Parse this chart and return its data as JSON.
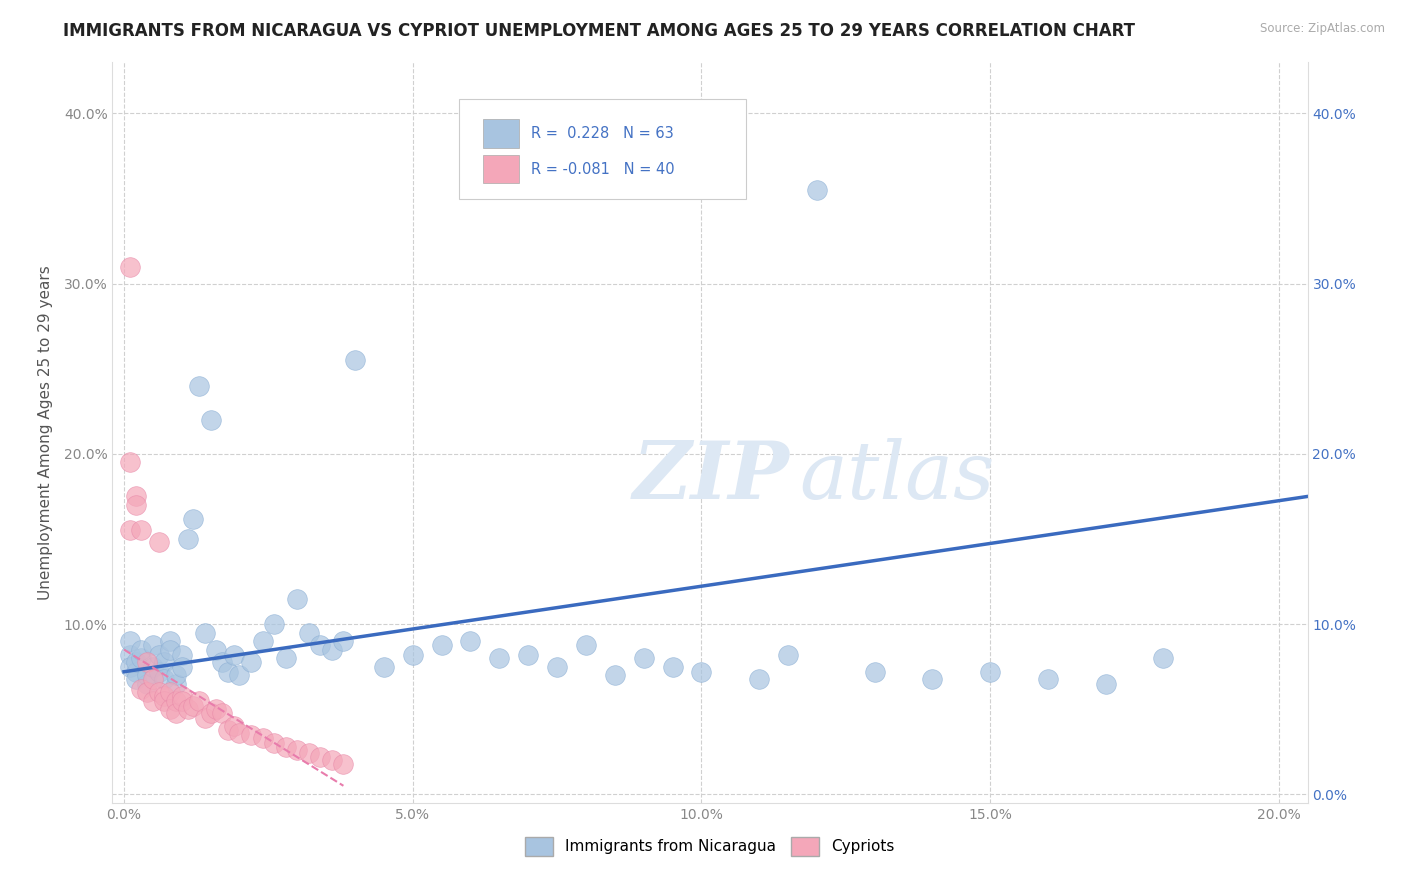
{
  "title": "IMMIGRANTS FROM NICARAGUA VS CYPRIOT UNEMPLOYMENT AMONG AGES 25 TO 29 YEARS CORRELATION CHART",
  "source": "Source: ZipAtlas.com",
  "ylabel": "Unemployment Among Ages 25 to 29 years",
  "xlim": [
    -0.002,
    0.205
  ],
  "ylim": [
    -0.005,
    0.43
  ],
  "xticks": [
    0.0,
    0.05,
    0.1,
    0.15,
    0.2
  ],
  "xtick_labels": [
    "0.0%",
    "5.0%",
    "10.0%",
    "15.0%",
    "20.0%"
  ],
  "yticks": [
    0.0,
    0.1,
    0.2,
    0.3,
    0.4
  ],
  "ytick_labels": [
    "",
    "10.0%",
    "20.0%",
    "30.0%",
    "40.0%"
  ],
  "ytick_labels_right": [
    "0.0%",
    "10.0%",
    "20.0%",
    "30.0%",
    "40.0%"
  ],
  "blue_color": "#a8c4e0",
  "pink_color": "#f4a7b9",
  "trend_blue": "#3a6abf",
  "trend_pink": "#e87cac",
  "blue_scatter_x": [
    0.001,
    0.001,
    0.001,
    0.002,
    0.002,
    0.002,
    0.003,
    0.003,
    0.004,
    0.004,
    0.005,
    0.005,
    0.006,
    0.006,
    0.007,
    0.007,
    0.008,
    0.008,
    0.009,
    0.009,
    0.01,
    0.01,
    0.011,
    0.012,
    0.013,
    0.014,
    0.015,
    0.016,
    0.017,
    0.018,
    0.019,
    0.02,
    0.022,
    0.024,
    0.026,
    0.028,
    0.03,
    0.032,
    0.034,
    0.036,
    0.038,
    0.04,
    0.045,
    0.05,
    0.055,
    0.06,
    0.065,
    0.07,
    0.075,
    0.08,
    0.085,
    0.09,
    0.095,
    0.1,
    0.11,
    0.115,
    0.12,
    0.13,
    0.14,
    0.15,
    0.16,
    0.17,
    0.18
  ],
  "blue_scatter_y": [
    0.082,
    0.075,
    0.09,
    0.072,
    0.068,
    0.078,
    0.08,
    0.085,
    0.065,
    0.07,
    0.088,
    0.075,
    0.082,
    0.072,
    0.078,
    0.068,
    0.09,
    0.085,
    0.065,
    0.07,
    0.082,
    0.075,
    0.15,
    0.162,
    0.24,
    0.095,
    0.22,
    0.085,
    0.078,
    0.072,
    0.082,
    0.07,
    0.078,
    0.09,
    0.1,
    0.08,
    0.115,
    0.095,
    0.088,
    0.085,
    0.09,
    0.255,
    0.075,
    0.082,
    0.088,
    0.09,
    0.08,
    0.082,
    0.075,
    0.088,
    0.07,
    0.08,
    0.075,
    0.072,
    0.068,
    0.082,
    0.355,
    0.072,
    0.068,
    0.072,
    0.068,
    0.065,
    0.08
  ],
  "pink_scatter_x": [
    0.001,
    0.001,
    0.001,
    0.002,
    0.002,
    0.003,
    0.003,
    0.004,
    0.004,
    0.005,
    0.005,
    0.006,
    0.006,
    0.007,
    0.007,
    0.008,
    0.008,
    0.009,
    0.009,
    0.01,
    0.01,
    0.011,
    0.012,
    0.013,
    0.014,
    0.015,
    0.016,
    0.017,
    0.018,
    0.019,
    0.02,
    0.022,
    0.024,
    0.026,
    0.028,
    0.03,
    0.032,
    0.034,
    0.036,
    0.038
  ],
  "pink_scatter_y": [
    0.31,
    0.195,
    0.155,
    0.175,
    0.17,
    0.155,
    0.062,
    0.078,
    0.06,
    0.068,
    0.055,
    0.148,
    0.06,
    0.058,
    0.055,
    0.06,
    0.05,
    0.055,
    0.048,
    0.058,
    0.055,
    0.05,
    0.052,
    0.055,
    0.045,
    0.048,
    0.05,
    0.048,
    0.038,
    0.04,
    0.036,
    0.035,
    0.033,
    0.03,
    0.028,
    0.026,
    0.024,
    0.022,
    0.02,
    0.018
  ],
  "blue_trend_x": [
    0.0,
    0.205
  ],
  "blue_trend_y": [
    0.072,
    0.175
  ],
  "pink_trend_x": [
    0.0,
    0.038
  ],
  "pink_trend_y": [
    0.085,
    0.005
  ],
  "legend_label1": "Immigrants from Nicaragua",
  "legend_label2": "Cypriots",
  "title_fontsize": 12,
  "axis_label_fontsize": 11,
  "tick_fontsize": 10,
  "background_color": "#ffffff",
  "grid_color": "#d0d0d0",
  "watermark_text": "ZIP",
  "watermark_text2": "atlas"
}
